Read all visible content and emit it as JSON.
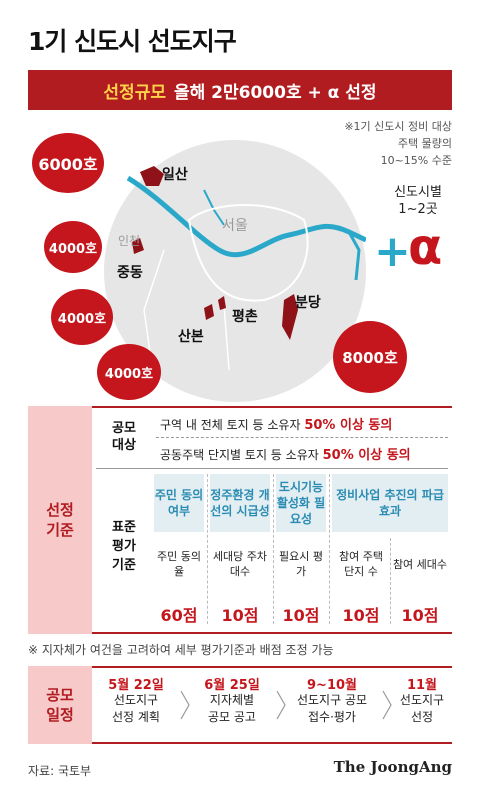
{
  "title": "1기 신도시 선도지구",
  "banner": {
    "highlight": "선정규모",
    "text": "올해 2만6000호 + α 선정"
  },
  "note": [
    "※1기 신도시 정비 대상",
    "주택 물량의",
    "10~15% 수준"
  ],
  "map": {
    "city_label": "서울",
    "incheon_label": "인천",
    "places": [
      {
        "name": "일산",
        "quota": "6000호"
      },
      {
        "name": "중동",
        "quota": "4000호"
      },
      {
        "name": "산본",
        "quota": "4000호"
      },
      {
        "name": "평촌",
        "quota": "4000호"
      },
      {
        "name": "분당",
        "quota": "8000호"
      }
    ],
    "plus_label": [
      "신도시별",
      "1~2곳"
    ],
    "plus": "+",
    "alpha": "α"
  },
  "criteria": {
    "section_label": [
      "선정",
      "기준"
    ],
    "target_label": [
      "공모",
      "대상"
    ],
    "target_rows": [
      {
        "text": "구역 내 전체 토지 등 소유자",
        "hl": "50% 이상 동의"
      },
      {
        "text": "공동주택 단지별 토지 등 소유자",
        "hl": "50% 이상 동의"
      }
    ],
    "standard_label": [
      "표준",
      "평가",
      "기준"
    ],
    "columns": [
      {
        "head": "주민 동의 여부",
        "items": [
          "주민 동의율"
        ],
        "score": "60점"
      },
      {
        "head": "정주환경 개선의 시급성",
        "items": [
          "세대당 주차 대수"
        ],
        "score": "10점"
      },
      {
        "head": "도시기능 활성화 필요성",
        "items": [
          "필요시 평가"
        ],
        "score": "10점"
      },
      {
        "head": "정비사업 추진의 파급효과",
        "items": [
          "참여 주택단지 수",
          "참여 세대수"
        ],
        "scores": [
          "10점",
          "10점"
        ]
      }
    ]
  },
  "footnote": "※ 지자체가 여건을 고려하여 세부 평가기준과 배점 조정 가능",
  "schedule": {
    "label": [
      "공모",
      "일정"
    ],
    "steps": [
      {
        "date": "5월 22일",
        "text": [
          "선도지구",
          "선정 계획"
        ]
      },
      {
        "date": "6월 25일",
        "text": [
          "지자체별",
          "공모 공고"
        ]
      },
      {
        "date": "9~10월",
        "text": [
          "선도지구 공모",
          "접수·평가"
        ]
      },
      {
        "date": "11월",
        "text": [
          "선도지구",
          "선정"
        ]
      }
    ]
  },
  "source": "자료: 국토부",
  "brand": "The JoongAng",
  "colors": {
    "accent_red": "#c4161c",
    "banner_red": "#b01c20",
    "river_blue": "#2aa8c9",
    "pink": "#f7c9c9",
    "map_gray": "#e6e6e6"
  }
}
